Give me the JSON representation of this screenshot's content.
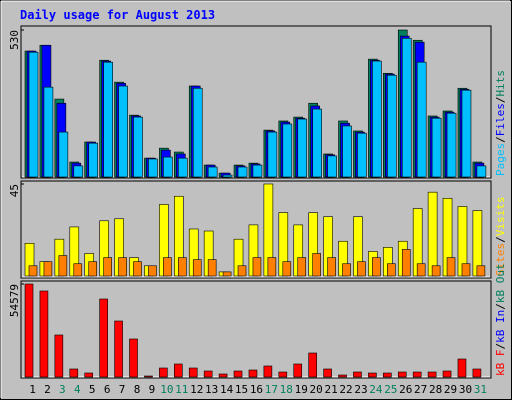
{
  "chart_data": {
    "type": "bar",
    "title": "Daily usage for August 2013",
    "categories": [
      "1",
      "2",
      "3",
      "4",
      "5",
      "6",
      "7",
      "8",
      "9",
      "10",
      "11",
      "12",
      "13",
      "14",
      "15",
      "16",
      "17",
      "18",
      "19",
      "20",
      "21",
      "22",
      "23",
      "24",
      "25",
      "26",
      "27",
      "28",
      "29",
      "30",
      "31"
    ],
    "category_colors": [
      "#000000",
      "#000000",
      "#00805c",
      "#00805c",
      "#000000",
      "#000000",
      "#000000",
      "#000000",
      "#000000",
      "#00805c",
      "#00805c",
      "#000000",
      "#000000",
      "#000000",
      "#000000",
      "#000000",
      "#00805c",
      "#00805c",
      "#000000",
      "#000000",
      "#000000",
      "#000000",
      "#000000",
      "#00805c",
      "#00805c",
      "#000000",
      "#000000",
      "#000000",
      "#000000",
      "#000000",
      "#00805c"
    ],
    "legend_separator": "/",
    "panels": [
      {
        "ylim": [
          0,
          530
        ],
        "yticks": [
          530
        ],
        "series": [
          {
            "name": "Hits",
            "color": "#00805c",
            "values": [
              454,
              475,
              281,
              54,
              126,
              421,
              342,
              223,
              68,
              104,
              90,
              328,
              43,
              14,
              43,
              50,
              169,
              202,
              216,
              266,
              83,
              202,
              166,
              425,
              374,
              530,
              493,
              220,
              238,
              320,
              54
            ]
          },
          {
            "name": "Files",
            "color": "#0000ff",
            "values": [
              454,
              475,
              266,
              50,
              126,
              418,
              338,
              220,
              68,
              97,
              83,
              328,
              43,
              14,
              40,
              47,
              166,
              198,
              212,
              256,
              80,
              194,
              162,
              421,
              371,
              508,
              486,
              216,
              234,
              316,
              50
            ]
          },
          {
            "name": "Pages",
            "color": "#00c0ff",
            "values": [
              450,
              324,
              162,
              40,
              122,
              414,
              328,
              216,
              65,
              72,
              68,
              320,
              36,
              7,
              36,
              43,
              162,
              191,
              209,
              245,
              76,
              184,
              158,
              418,
              367,
              500,
              414,
              212,
              230,
              313,
              40
            ]
          }
        ]
      },
      {
        "ylim": [
          0,
          45
        ],
        "yticks": [
          45
        ],
        "series": [
          {
            "name": "Visits",
            "color": "#ffff00",
            "values": [
              16,
              7,
              18,
              24,
              11,
              27,
              28,
              9,
              5,
              35,
              39,
              23,
              22,
              2,
              18,
              25,
              45,
              31,
              25,
              31,
              29,
              17,
              29,
              12,
              14,
              17,
              33,
              41,
              38,
              34,
              32
            ]
          },
          {
            "name": "Sites",
            "color": "#ff8000",
            "values": [
              5,
              7,
              10,
              6,
              7,
              9,
              9,
              7,
              5,
              9,
              9,
              8,
              8,
              2,
              5,
              9,
              9,
              7,
              9,
              11,
              9,
              6,
              7,
              9,
              6,
              13,
              6,
              5,
              9,
              6,
              5
            ]
          }
        ]
      },
      {
        "ylim": [
          0,
          54579
        ],
        "yticks": [
          54579
        ],
        "series": [
          {
            "name": "kB F",
            "color": "#ff0000",
            "values": [
              54579,
              50470,
              24648,
              4695,
              2348,
              45775,
              32866,
              22300,
              587,
              5282,
              7630,
              5282,
              3521,
              1761,
              3521,
              4108,
              6456,
              2935,
              7630,
              14085,
              4695,
              1174,
              2935,
              2348,
              2348,
              2935,
              2935,
              2935,
              3521,
              10564,
              4695
            ]
          }
        ],
        "legend_extra": [
          {
            "name": "kB In",
            "color": "#0000ff"
          },
          {
            "name": "kB Out",
            "color": "#00805c"
          }
        ]
      }
    ]
  }
}
